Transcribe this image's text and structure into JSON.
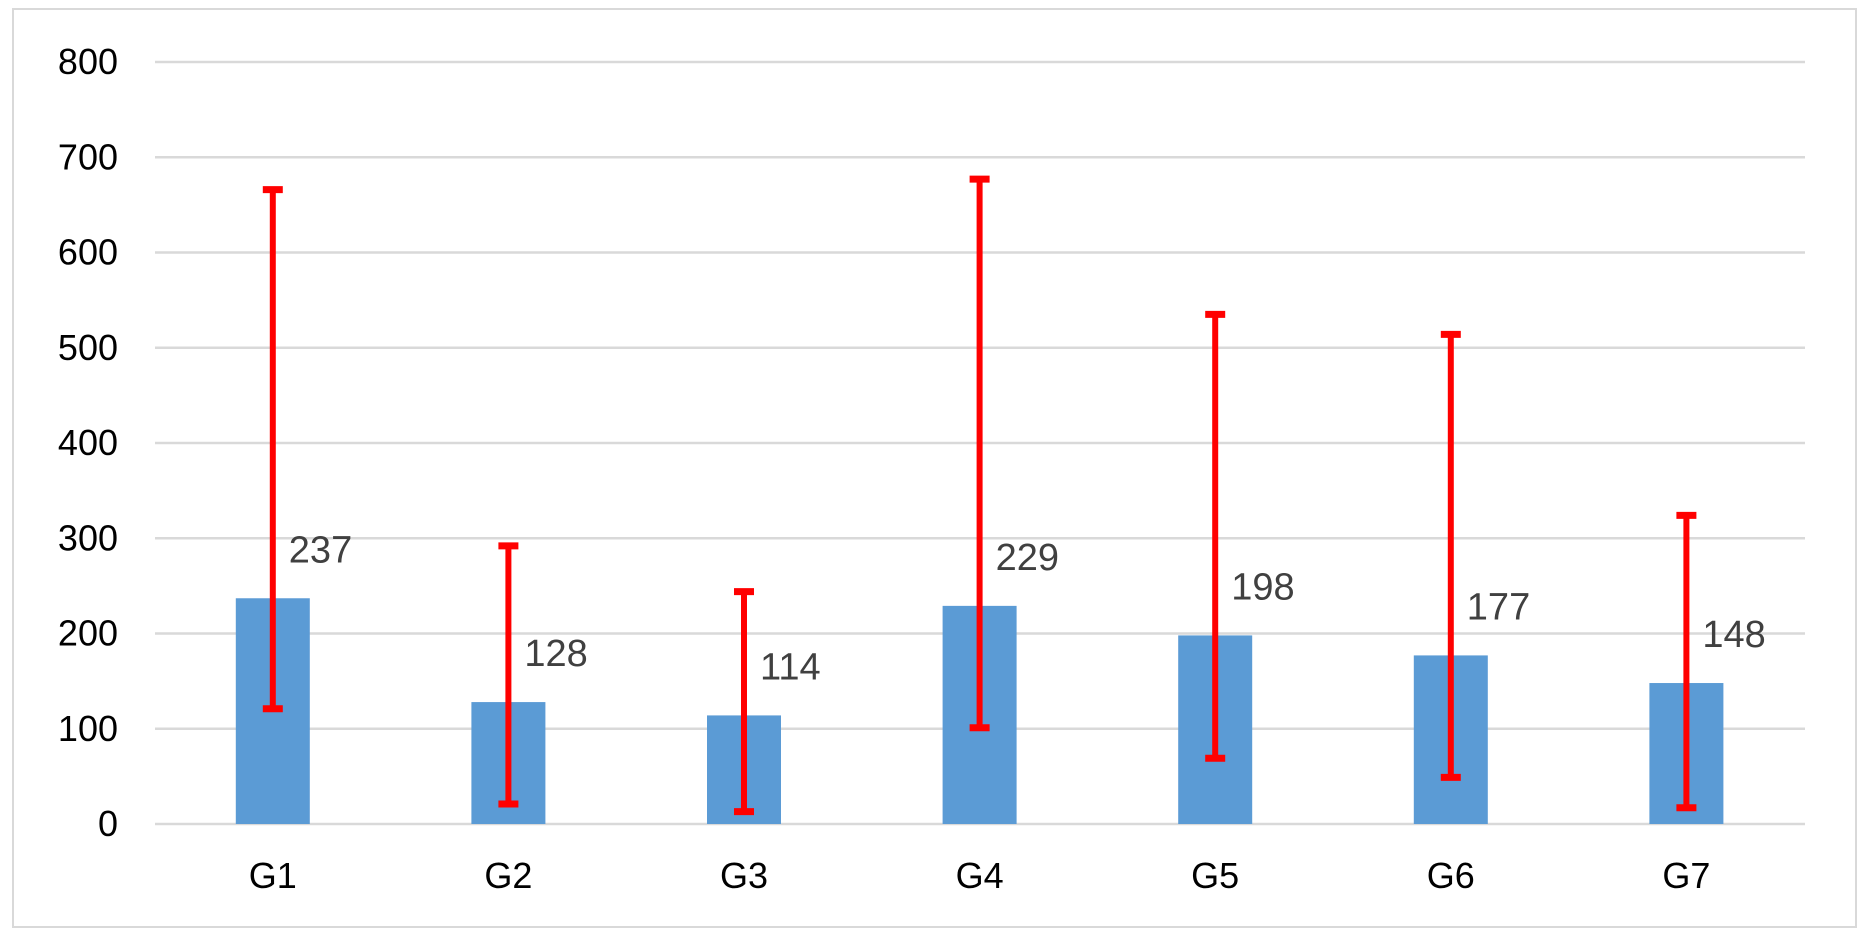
{
  "chart_data": {
    "type": "bar",
    "title": "",
    "xlabel": "",
    "ylabel": "",
    "categories": [
      "G1",
      "G2",
      "G3",
      "G4",
      "G5",
      "G6",
      "G7"
    ],
    "values": [
      237,
      128,
      114,
      229,
      198,
      177,
      148
    ],
    "error_low": [
      121,
      21,
      13,
      101,
      69,
      49,
      17
    ],
    "error_high": [
      666,
      292,
      244,
      677,
      535,
      514,
      324
    ],
    "ylim": [
      0,
      800
    ],
    "yticks": [
      0,
      100,
      200,
      300,
      400,
      500,
      600,
      700,
      800
    ],
    "grid": true,
    "legend": "none",
    "colors": {
      "bar": "#5b9bd5",
      "error_bar": "#ff0000",
      "gridline": "#d9d9d9",
      "data_label": "#404040",
      "tick_label": "#000000"
    }
  }
}
